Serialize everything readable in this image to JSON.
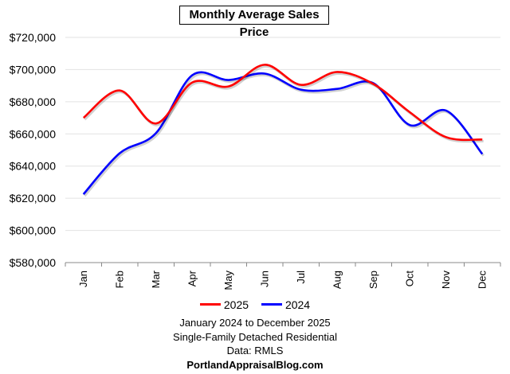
{
  "chart_data": {
    "type": "line",
    "title": "Monthly Average Sales Price",
    "categories": [
      "Jan",
      "Feb",
      "Mar",
      "Apr",
      "May",
      "Jun",
      "Jul",
      "Aug",
      "Sep",
      "Oct",
      "Nov",
      "Dec"
    ],
    "series": [
      {
        "name": "2025",
        "color": "#ff0000",
        "values": [
          670000,
          687000,
          666500,
          692000,
          689500,
          703000,
          690500,
          698500,
          691000,
          673500,
          658000,
          656500
        ]
      },
      {
        "name": "2024",
        "color": "#0000ff",
        "values": [
          622500,
          648000,
          660500,
          696500,
          693500,
          697500,
          687500,
          688000,
          691500,
          665500,
          674500,
          647500
        ]
      }
    ],
    "ylim": [
      580000,
      720000
    ],
    "yticks": [
      "$580,000",
      "$600,000",
      "$620,000",
      "$640,000",
      "$660,000",
      "$680,000",
      "$700,000",
      "$720,000"
    ],
    "ytick_values": [
      580000,
      600000,
      620000,
      640000,
      660000,
      680000,
      700000,
      720000
    ],
    "grid": true,
    "smooth": true,
    "legend_placement": "bottom",
    "xlabel": "",
    "ylabel": ""
  },
  "footer": {
    "line1": "January 2024 to December 2025",
    "line2": "Single-Family Detached Residential",
    "line3": "Data: RMLS",
    "line4": "PortlandAppraisalBlog.com"
  }
}
